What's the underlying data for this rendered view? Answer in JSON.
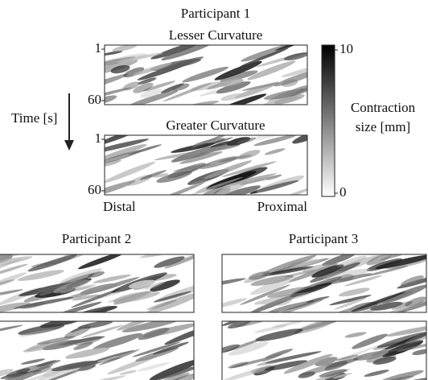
{
  "participant1": {
    "title": "Participant 1",
    "panels": [
      {
        "title": "Lesser Curvature",
        "yticks": [
          1,
          60
        ]
      },
      {
        "title": "Greater Curvature",
        "yticks": [
          1,
          60
        ]
      }
    ],
    "ylabel": "Time [s]",
    "xlabels": [
      "Distal",
      "Proximal"
    ]
  },
  "colorbar": {
    "label": [
      "Contraction",
      "size [mm]"
    ],
    "ticks": [
      0,
      10
    ]
  },
  "participant2": {
    "title": "Participant 2"
  },
  "participant3": {
    "title": "Participant 3"
  }
}
